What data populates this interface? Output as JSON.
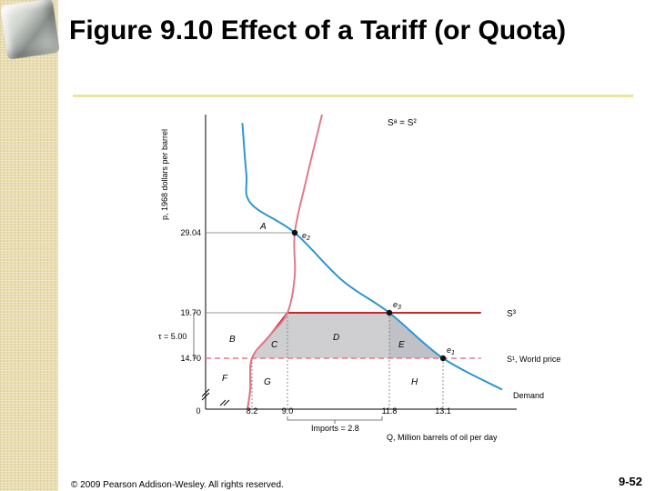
{
  "slide": {
    "title": "Figure 9.10 Effect of a Tariff (or Quota)",
    "copyright": "© 2009 Pearson Addison-Wesley. All rights reserved.",
    "page_number": "9-52"
  },
  "chart_data": {
    "type": "line",
    "ylabel": "p, 1968 dollars per barrel",
    "xlabel": "Q, Million barrels of oil per day",
    "x_ticks": [
      {
        "label": "0",
        "value": 0
      },
      {
        "label": "8.2",
        "value": 8.2
      },
      {
        "label": "9.0",
        "value": 9.0
      },
      {
        "label": "11.8",
        "value": 11.8
      },
      {
        "label": "13.1",
        "value": 13.1
      }
    ],
    "y_ticks": [
      {
        "label": "14.70",
        "value": 14.7
      },
      {
        "label": "19.70",
        "value": 19.7
      },
      {
        "label": "29.04",
        "value": 29.04
      }
    ],
    "tariff_label": "τ = 5.00",
    "imports_label": "Imports = 2.8",
    "series": [
      {
        "name": "Demand",
        "color": "#2e96d0",
        "points": [
          [
            6.5,
            42
          ],
          [
            7.2,
            36
          ],
          [
            8.0,
            32.5
          ],
          [
            9.2,
            29.04
          ],
          [
            10.5,
            23.5
          ],
          [
            11.8,
            19.7
          ],
          [
            13.1,
            14.7
          ],
          [
            14.5,
            11.5
          ]
        ]
      },
      {
        "name": "Sᵃ = S²",
        "color": "#e07b8b",
        "points": [
          [
            7.4,
            9.5
          ],
          [
            7.9,
            11.5
          ],
          [
            8.2,
            14.7
          ],
          [
            8.6,
            17.2
          ],
          [
            9.0,
            19.7
          ],
          [
            9.2,
            24
          ],
          [
            9.2,
            29.04
          ],
          [
            9.5,
            35
          ],
          [
            9.95,
            43
          ]
        ]
      },
      {
        "name": "S³",
        "color": "#c42a32",
        "points": [
          [
            7.4,
            9.5
          ],
          [
            7.9,
            11.5
          ],
          [
            8.2,
            14.7
          ],
          [
            8.6,
            17.2
          ],
          [
            9.0,
            19.7
          ],
          [
            14.0,
            19.7
          ]
        ]
      },
      {
        "name": "S¹, World price",
        "color": "#e07b8b",
        "dashed": true,
        "points": [
          [
            0,
            14.7
          ],
          [
            14.0,
            14.7
          ]
        ]
      }
    ],
    "points": [
      {
        "label": "e",
        "subscript": "2",
        "x": 9.2,
        "y": 29.04
      },
      {
        "label": "e",
        "subscript": "3",
        "x": 11.8,
        "y": 19.7
      },
      {
        "label": "e",
        "subscript": "1",
        "x": 13.1,
        "y": 14.7
      }
    ],
    "areas": [
      "A",
      "B",
      "C",
      "D",
      "E",
      "F",
      "G",
      "H"
    ]
  }
}
